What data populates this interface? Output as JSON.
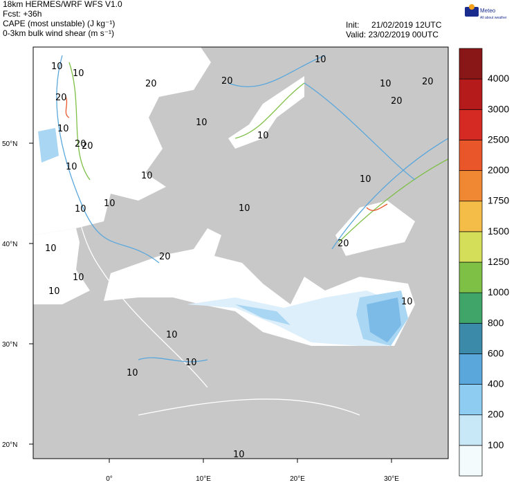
{
  "header": {
    "lines": [
      "18km HERMES/WRF WFS V1.0",
      "Fcst: +36h",
      "CAPE (most unstable) (J kg⁻¹)",
      "0-3km bulk wind shear (m s⁻¹)"
    ],
    "init_label": "Init:",
    "init": "21/02/2019 12UTC",
    "valid": "Valid: 23/02/2019 00UTC"
  },
  "logo": {
    "name": "Meteo",
    "tagline": "All about weather"
  },
  "colorbar": {
    "labels": [
      "100",
      "200",
      "400",
      "600",
      "800",
      "1000",
      "1250",
      "1500",
      "1750",
      "2000",
      "2500",
      "3000",
      "4000"
    ],
    "colors": [
      "#f4fbfd",
      "#c8e8f7",
      "#8ecdf1",
      "#5aa7dc",
      "#3b8aa9",
      "#3fa568",
      "#7ebf46",
      "#d5de59",
      "#f4bd48",
      "#f08733",
      "#e8562a",
      "#d52a23",
      "#b51b1b",
      "#8a1717"
    ]
  },
  "map": {
    "lat_labels": [
      "50°N",
      "40°N",
      "30°N",
      "20°N"
    ],
    "lon_labels": [
      "0°",
      "10°E",
      "20°E",
      "30°E"
    ],
    "contour_labels": [
      "10",
      "10",
      "20",
      "10",
      "20",
      "10",
      "20",
      "10",
      "10",
      "10",
      "10",
      "10",
      "20",
      "10",
      "10",
      "10",
      "10",
      "20",
      "10",
      "20",
      "10",
      "10",
      "10",
      "20",
      "10",
      "10",
      "20",
      "10",
      "10",
      "20"
    ]
  }
}
